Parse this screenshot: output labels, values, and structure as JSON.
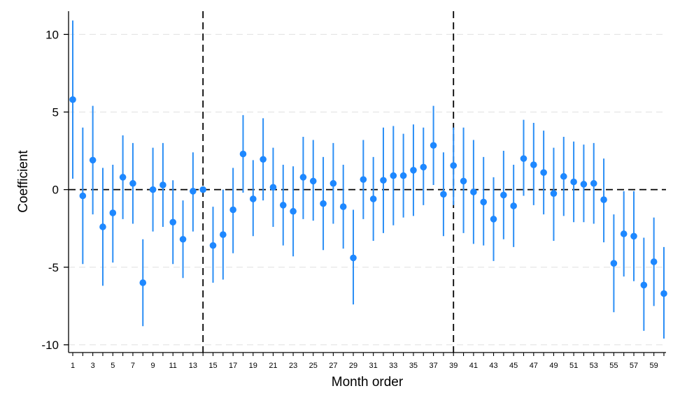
{
  "chart_data": {
    "type": "scatter",
    "title": "",
    "xlabel": "Month order",
    "ylabel": "Coefficient",
    "xlim": [
      1,
      60
    ],
    "ylim": [
      -10.5,
      11.5
    ],
    "x_ticks": [
      1,
      3,
      5,
      7,
      9,
      11,
      13,
      15,
      17,
      19,
      21,
      23,
      25,
      27,
      29,
      31,
      33,
      35,
      37,
      39,
      41,
      43,
      45,
      47,
      49,
      51,
      53,
      55,
      57,
      59
    ],
    "y_ticks": [
      -10,
      -5,
      0,
      5,
      10
    ],
    "y_tick_labels": [
      "-10",
      "-5",
      "0",
      "5",
      "10"
    ],
    "grid": "horizontal-dashed",
    "reference_line_y": 0,
    "vertical_lines_x": [
      14,
      39
    ],
    "colors": {
      "point": "#1e88ff",
      "ci_line": "#2b8ef5",
      "gridline": "#e6e6e6",
      "reference": "#000000"
    },
    "series": [
      {
        "points": [
          {
            "x": 1,
            "y": 5.8,
            "lo": 0.7,
            "hi": 10.9
          },
          {
            "x": 2,
            "y": -0.4,
            "lo": -4.8,
            "hi": 4.0
          },
          {
            "x": 3,
            "y": 1.9,
            "lo": -1.6,
            "hi": 5.4
          },
          {
            "x": 4,
            "y": -2.4,
            "lo": -6.2,
            "hi": 1.4
          },
          {
            "x": 5,
            "y": -1.5,
            "lo": -4.7,
            "hi": 1.6
          },
          {
            "x": 6,
            "y": 0.8,
            "lo": -1.9,
            "hi": 3.5
          },
          {
            "x": 7,
            "y": 0.4,
            "lo": -2.2,
            "hi": 3.0
          },
          {
            "x": 8,
            "y": -6.0,
            "lo": -8.8,
            "hi": -3.2
          },
          {
            "x": 9,
            "y": 0.0,
            "lo": -2.7,
            "hi": 2.7
          },
          {
            "x": 10,
            "y": 0.3,
            "lo": -2.4,
            "hi": 3.0
          },
          {
            "x": 11,
            "y": -2.1,
            "lo": -4.8,
            "hi": 0.6
          },
          {
            "x": 12,
            "y": -3.2,
            "lo": -5.7,
            "hi": -0.7
          },
          {
            "x": 13,
            "y": -0.1,
            "lo": -2.7,
            "hi": 2.4
          },
          {
            "x": 14,
            "y": 0.0,
            "lo": 0.0,
            "hi": 0.0
          },
          {
            "x": 15,
            "y": -3.6,
            "lo": -6.0,
            "hi": -1.1
          },
          {
            "x": 16,
            "y": -2.9,
            "lo": -5.8,
            "hi": 0.0
          },
          {
            "x": 17,
            "y": -1.3,
            "lo": -4.1,
            "hi": 1.4
          },
          {
            "x": 18,
            "y": 2.3,
            "lo": -0.2,
            "hi": 4.8
          },
          {
            "x": 19,
            "y": -0.6,
            "lo": -3.0,
            "hi": 1.9
          },
          {
            "x": 20,
            "y": 1.95,
            "lo": -0.7,
            "hi": 4.6
          },
          {
            "x": 21,
            "y": 0.15,
            "lo": -2.4,
            "hi": 2.7
          },
          {
            "x": 22,
            "y": -1.0,
            "lo": -3.6,
            "hi": 1.6
          },
          {
            "x": 23,
            "y": -1.4,
            "lo": -4.3,
            "hi": 1.5
          },
          {
            "x": 24,
            "y": 0.8,
            "lo": -1.9,
            "hi": 3.4
          },
          {
            "x": 25,
            "y": 0.55,
            "lo": -2.0,
            "hi": 3.2
          },
          {
            "x": 26,
            "y": -0.9,
            "lo": -3.9,
            "hi": 2.1
          },
          {
            "x": 27,
            "y": 0.4,
            "lo": -2.2,
            "hi": 3.0
          },
          {
            "x": 28,
            "y": -1.1,
            "lo": -3.8,
            "hi": 1.6
          },
          {
            "x": 29,
            "y": -4.4,
            "lo": -7.4,
            "hi": -1.3
          },
          {
            "x": 30,
            "y": 0.65,
            "lo": -1.9,
            "hi": 3.2
          },
          {
            "x": 31,
            "y": -0.6,
            "lo": -3.3,
            "hi": 2.1
          },
          {
            "x": 32,
            "y": 0.6,
            "lo": -2.8,
            "hi": 4.0
          },
          {
            "x": 33,
            "y": 0.9,
            "lo": -2.3,
            "hi": 4.1
          },
          {
            "x": 34,
            "y": 0.9,
            "lo": -1.8,
            "hi": 3.6
          },
          {
            "x": 35,
            "y": 1.25,
            "lo": -1.7,
            "hi": 4.2
          },
          {
            "x": 36,
            "y": 1.45,
            "lo": -1.0,
            "hi": 4.0
          },
          {
            "x": 37,
            "y": 2.85,
            "lo": 0.3,
            "hi": 5.4
          },
          {
            "x": 38,
            "y": -0.3,
            "lo": -3.0,
            "hi": 2.4
          },
          {
            "x": 39,
            "y": 1.55,
            "lo": -1.0,
            "hi": 4.0
          },
          {
            "x": 40,
            "y": 0.55,
            "lo": -2.8,
            "hi": 4.0
          },
          {
            "x": 41,
            "y": -0.15,
            "lo": -3.5,
            "hi": 3.2
          },
          {
            "x": 42,
            "y": -0.8,
            "lo": -3.6,
            "hi": 2.1
          },
          {
            "x": 43,
            "y": -1.9,
            "lo": -4.6,
            "hi": 0.8
          },
          {
            "x": 44,
            "y": -0.35,
            "lo": -3.2,
            "hi": 2.5
          },
          {
            "x": 45,
            "y": -1.05,
            "lo": -3.7,
            "hi": 1.6
          },
          {
            "x": 46,
            "y": 2.0,
            "lo": -0.4,
            "hi": 4.5
          },
          {
            "x": 47,
            "y": 1.6,
            "lo": -1.0,
            "hi": 4.3
          },
          {
            "x": 48,
            "y": 1.1,
            "lo": -1.6,
            "hi": 3.8
          },
          {
            "x": 49,
            "y": -0.25,
            "lo": -3.3,
            "hi": 2.7
          },
          {
            "x": 50,
            "y": 0.85,
            "lo": -1.7,
            "hi": 3.4
          },
          {
            "x": 51,
            "y": 0.5,
            "lo": -2.1,
            "hi": 3.1
          },
          {
            "x": 52,
            "y": 0.35,
            "lo": -2.1,
            "hi": 2.9
          },
          {
            "x": 53,
            "y": 0.4,
            "lo": -2.2,
            "hi": 3.0
          },
          {
            "x": 54,
            "y": -0.65,
            "lo": -3.4,
            "hi": 2.0
          },
          {
            "x": 55,
            "y": -4.75,
            "lo": -7.9,
            "hi": -1.6
          },
          {
            "x": 56,
            "y": -2.85,
            "lo": -5.6,
            "hi": -0.1
          },
          {
            "x": 57,
            "y": -3.0,
            "lo": -5.9,
            "hi": -0.1
          },
          {
            "x": 58,
            "y": -6.15,
            "lo": -9.1,
            "hi": -3.1
          },
          {
            "x": 59,
            "y": -4.65,
            "lo": -7.5,
            "hi": -1.8
          },
          {
            "x": 60,
            "y": -6.7,
            "lo": -9.6,
            "hi": -3.7
          }
        ]
      }
    ]
  }
}
